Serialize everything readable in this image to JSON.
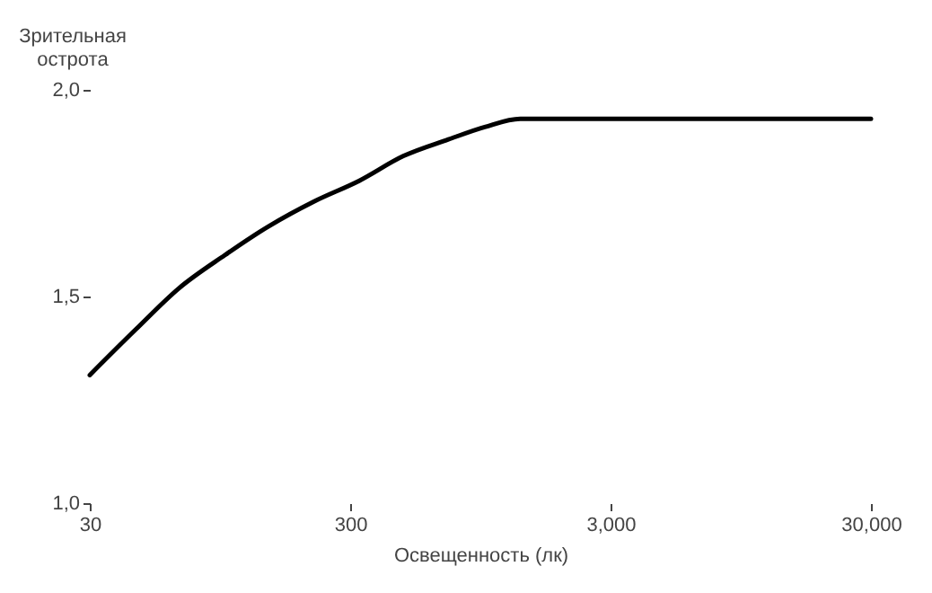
{
  "chart_data": {
    "type": "line",
    "xlabel": "Освещенность (лк)",
    "ylabel": "Зрительная острота",
    "log": "x",
    "x": [
      30,
      45,
      66,
      99,
      146,
      218,
      325,
      481,
      715,
      986,
      1350,
      30000
    ],
    "series": [
      {
        "color": "#000000",
        "values": [
          1.31,
          1.42,
          1.52,
          1.6,
          1.67,
          1.73,
          1.78,
          1.84,
          1.88,
          1.91,
          1.93,
          1.93
        ]
      }
    ],
    "xlim": [
      30,
      30000
    ],
    "ylim": [
      1.0,
      2.0
    ],
    "xticks": [
      30,
      300,
      {
        "value": 3000,
        "label": "3,000"
      },
      {
        "value": 30000,
        "label": "30,000"
      }
    ],
    "yticks": [
      {
        "value": 1.0,
        "label": "1,0"
      },
      {
        "value": 1.5,
        "label": "1,5"
      },
      {
        "value": 2.0,
        "label": "2,0"
      }
    ],
    "grid": false,
    "marker": "none",
    "line_style": "solid"
  }
}
